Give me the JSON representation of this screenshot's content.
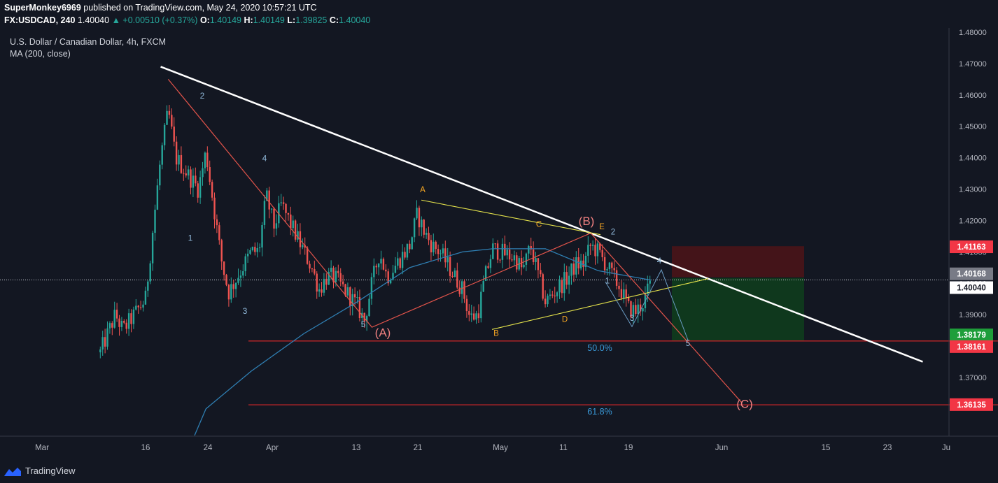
{
  "header": {
    "author": "SuperMonkey6969",
    "published": " published on TradingView.com, May 24, 2020 10:57:21 UTC",
    "symbol": "FX:USDCAD, 240",
    "last": "1.40040",
    "change": "▲ +0.00510 (+0.37%)",
    "o_label": "O:",
    "o": "1.40149",
    "h_label": "H:",
    "h": "1.40149",
    "l_label": "L:",
    "l": "1.39825",
    "c_label": "C:",
    "c": "1.40040"
  },
  "legend": {
    "title": "U.S. Dollar / Canadian Dollar, 4h, FXCM",
    "indicator": "MA (200, close)"
  },
  "footer": {
    "brand": "TradingView",
    "icon": "tradingview-logo-icon"
  },
  "colors": {
    "background": "#131722",
    "up": "#26a69a",
    "down": "#ef5350",
    "ma": "#2f7fb3",
    "trendline": "#ffffff",
    "wave": "#e0534a",
    "triangle": "#e5e34b",
    "stop_zone": "#4a1418",
    "target_zone": "#0f3a1e",
    "fib": "#ff2b2b"
  },
  "chart_data": {
    "type": "candlestick",
    "title": "U.S. Dollar / Canadian Dollar, 4h, FXCM",
    "y_axis": {
      "min": 1.36,
      "max": 1.48,
      "ticks": [
        "1.48000",
        "1.47000",
        "1.46000",
        "1.45000",
        "1.44000",
        "1.43000",
        "1.42000",
        "1.41000",
        "1.40000",
        "1.39000",
        "1.38000",
        "1.37000"
      ]
    },
    "x_axis": {
      "ticks": [
        "Mar",
        "16",
        "24",
        "Apr",
        "13",
        "21",
        "May",
        "11",
        "19",
        "Jun",
        "15",
        "23",
        "Ju"
      ]
    },
    "price_labels": [
      {
        "value": "1.41163",
        "color": "#f23645"
      },
      {
        "value": "1.40168",
        "color": "#787b86"
      },
      {
        "value": "1.40040",
        "color": "#ffffff"
      },
      {
        "value": "1.38179",
        "color": "#1e9e3a"
      },
      {
        "value": "1.38161",
        "color": "#f23645"
      },
      {
        "value": "1.36135",
        "color": "#f23645"
      }
    ],
    "close_path": [
      [
        "03-10",
        1.378
      ],
      [
        "03-12",
        1.39
      ],
      [
        "03-13",
        1.385
      ],
      [
        "03-16",
        1.395
      ],
      [
        "03-17",
        1.418
      ],
      [
        "03-18",
        1.44
      ],
      [
        "03-19",
        1.455
      ],
      [
        "03-20",
        1.44
      ],
      [
        "03-23",
        1.43
      ],
      [
        "03-24",
        1.442
      ],
      [
        "03-25",
        1.425
      ],
      [
        "03-26",
        1.408
      ],
      [
        "03-27",
        1.397
      ],
      [
        "03-30",
        1.41
      ],
      [
        "03-31",
        1.41
      ],
      [
        "04-01",
        1.428
      ],
      [
        "04-02",
        1.418
      ],
      [
        "04-03",
        1.425
      ],
      [
        "04-06",
        1.41
      ],
      [
        "04-07",
        1.405
      ],
      [
        "04-08",
        1.398
      ],
      [
        "04-09",
        1.402
      ],
      [
        "04-10",
        1.402
      ],
      [
        "04-13",
        1.393
      ],
      [
        "04-14",
        1.388
      ],
      [
        "04-15",
        1.4
      ],
      [
        "04-16",
        1.41
      ],
      [
        "04-17",
        1.402
      ],
      [
        "04-20",
        1.412
      ],
      [
        "04-21",
        1.422
      ],
      [
        "04-22",
        1.416
      ],
      [
        "04-23",
        1.412
      ],
      [
        "04-24",
        1.41
      ],
      [
        "04-27",
        1.398
      ],
      [
        "04-28",
        1.389
      ],
      [
        "04-29",
        1.39
      ],
      [
        "04-30",
        1.402
      ],
      [
        "05-01",
        1.411
      ],
      [
        "05-04",
        1.408
      ],
      [
        "05-05",
        1.404
      ],
      [
        "05-06",
        1.412
      ],
      [
        "05-07",
        1.403
      ],
      [
        "05-08",
        1.394
      ],
      [
        "05-11",
        1.402
      ],
      [
        "05-12",
        1.406
      ],
      [
        "05-13",
        1.406
      ],
      [
        "05-14",
        1.412
      ],
      [
        "05-15",
        1.41
      ],
      [
        "05-18",
        1.398
      ],
      [
        "05-19",
        1.392
      ],
      [
        "05-20",
        1.391
      ],
      [
        "05-21",
        1.394
      ],
      [
        "05-22",
        1.4004
      ]
    ],
    "moving_average": [
      [
        "03-24",
        1.36
      ],
      [
        "03-30",
        1.372
      ],
      [
        "04-06",
        1.384
      ],
      [
        "04-13",
        1.394
      ],
      [
        "04-20",
        1.405
      ],
      [
        "04-27",
        1.41
      ],
      [
        "05-01",
        1.411
      ],
      [
        "05-08",
        1.411
      ],
      [
        "05-15",
        1.404
      ],
      [
        "05-22",
        1.401
      ]
    ],
    "trendline": [
      [
        "03-18",
        1.469
      ],
      [
        "06-27",
        1.375
      ]
    ],
    "elliott_wave": [
      [
        "03-19",
        1.465
      ],
      [
        "04-15",
        1.386
      ],
      [
        "05-14",
        1.416
      ],
      [
        "06-03",
        1.362
      ]
    ],
    "wave_labels": [
      "1",
      "2",
      "3",
      "4",
      "5",
      "(A)",
      "(B)",
      "(C)"
    ],
    "triangle_labels": [
      "A",
      "B",
      "C",
      "D",
      "E"
    ],
    "subwave_labels": [
      "1",
      "2",
      "3",
      "4",
      "5"
    ],
    "fib_levels": [
      {
        "level": "50.0%",
        "price": 1.3816
      },
      {
        "level": "61.8%",
        "price": 1.3613
      }
    ],
    "position": {
      "entry": 1.4017,
      "stop": 1.4116,
      "target": 1.3818
    }
  }
}
